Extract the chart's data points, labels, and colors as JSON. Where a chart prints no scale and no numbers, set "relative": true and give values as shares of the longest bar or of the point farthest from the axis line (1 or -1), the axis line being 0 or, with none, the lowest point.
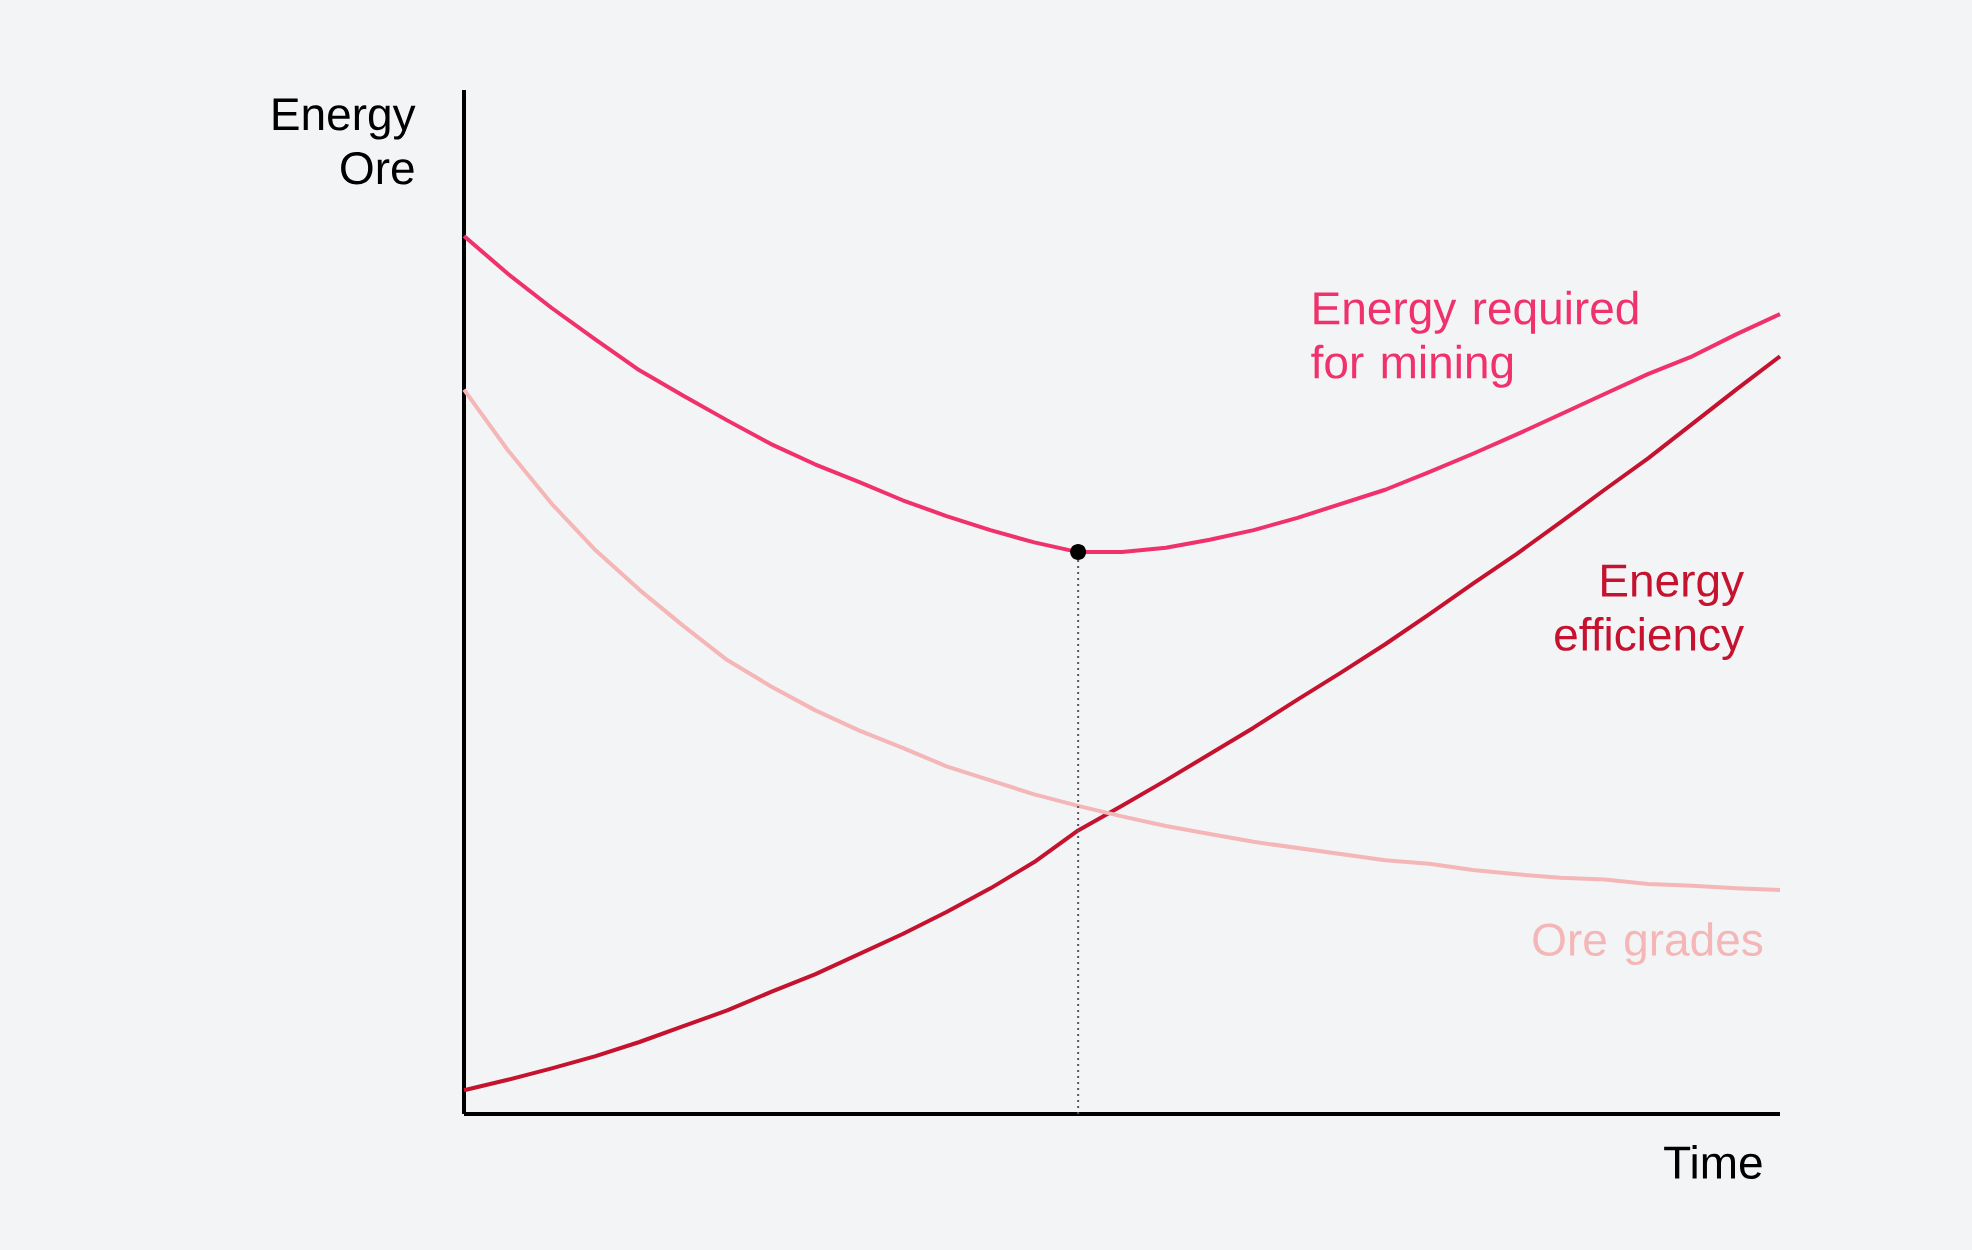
{
  "chart_data": {
    "type": "line",
    "relative": true,
    "xlabel": "Time",
    "ylabel": "Energy Ore",
    "categories": [
      null,
      null,
      null,
      null,
      null,
      null,
      null,
      null,
      null,
      null,
      null,
      null,
      null,
      null,
      null,
      null,
      null,
      null,
      null,
      null,
      null,
      null,
      null,
      null,
      null,
      null,
      null,
      null,
      null,
      null,
      null
    ],
    "series": [
      {
        "name": "Energy required for mining",
        "color": "#f0326c",
        "values": [
          1,
          0.957,
          0.918,
          0.882,
          0.847,
          0.818,
          0.79,
          0.763,
          0.74,
          0.72,
          0.699,
          0.681,
          0.665,
          0.651,
          0.64,
          0.64,
          0.645,
          0.654,
          0.665,
          0.679,
          0.695,
          0.711,
          0.731,
          0.752,
          0.774,
          0.797,
          0.82,
          0.843,
          0.863,
          0.888,
          0.911
        ]
      },
      {
        "name": "Energy efficiency",
        "color": "#c4122f",
        "values": [
          0.027,
          0.039,
          0.052,
          0.066,
          0.082,
          0.1,
          0.118,
          0.139,
          0.159,
          0.182,
          0.205,
          0.23,
          0.257,
          0.287,
          0.323,
          0.351,
          0.38,
          0.41,
          0.44,
          0.472,
          0.503,
          0.535,
          0.569,
          0.604,
          0.638,
          0.674,
          0.711,
          0.747,
          0.786,
          0.825,
          0.863
        ]
      },
      {
        "name": "Ore grades",
        "color": "#f4b6b6",
        "values": [
          0.825,
          0.756,
          0.695,
          0.642,
          0.597,
          0.556,
          0.517,
          0.487,
          0.46,
          0.437,
          0.417,
          0.396,
          0.38,
          0.364,
          0.351,
          0.339,
          0.328,
          0.319,
          0.31,
          0.303,
          0.296,
          0.289,
          0.285,
          0.278,
          0.273,
          0.269,
          0.267,
          0.262,
          0.26,
          0.257,
          0.255
        ]
      }
    ]
  }
}
